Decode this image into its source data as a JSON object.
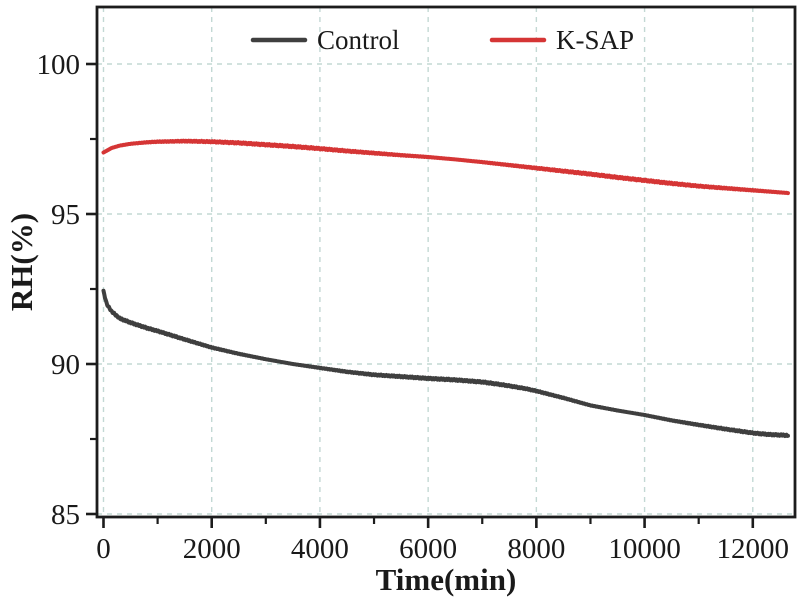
{
  "figure": {
    "background": "#ffffff"
  },
  "chart_data": {
    "type": "line",
    "title": "",
    "xlabel": "Time(min)",
    "ylabel": "RH(%)",
    "xlim": [
      -120,
      12780
    ],
    "ylim": [
      84.9,
      101.9
    ],
    "x_major_ticks": [
      0,
      2000,
      4000,
      6000,
      8000,
      10000,
      12000
    ],
    "x_tick_labels": [
      "0",
      "2000",
      "4000",
      "6000",
      "8000",
      "10000",
      "12000"
    ],
    "x_minor_ticks": [
      1000,
      3000,
      5000,
      7000,
      9000,
      11000
    ],
    "y_major_ticks": [
      85,
      90,
      95,
      100
    ],
    "y_tick_labels": [
      "85",
      "90",
      "95",
      "100"
    ],
    "y_minor_ticks": [
      87.5,
      92.5,
      97.5
    ],
    "grid": {
      "show": true,
      "style": "dashed",
      "color": "#c3d8d4",
      "at": "major-ticks"
    },
    "axis_color": "#1c1c1c",
    "legend": {
      "position": "top-center-inside",
      "entries": [
        "Control",
        "K-SAP"
      ]
    },
    "series": [
      {
        "name": "Control",
        "color": "#3f3f3f",
        "x": [
          0,
          60,
          150,
          300,
          500,
          800,
          1000,
          1500,
          2000,
          2500,
          3000,
          3500,
          4000,
          4500,
          5000,
          5500,
          6000,
          6500,
          7000,
          7400,
          7800,
          8000,
          8500,
          9000,
          9500,
          10000,
          10500,
          11000,
          11500,
          12000,
          12300,
          12650
        ],
        "y": [
          92.42,
          92.0,
          91.75,
          91.52,
          91.38,
          91.2,
          91.1,
          90.82,
          90.55,
          90.34,
          90.16,
          90.0,
          89.87,
          89.74,
          89.64,
          89.58,
          89.52,
          89.47,
          89.4,
          89.3,
          89.18,
          89.1,
          88.87,
          88.62,
          88.45,
          88.3,
          88.12,
          87.97,
          87.83,
          87.7,
          87.65,
          87.62
        ]
      },
      {
        "name": "K-SAP",
        "color": "#d53535",
        "x": [
          0,
          150,
          300,
          500,
          800,
          1000,
          1500,
          2000,
          2500,
          3000,
          3500,
          4000,
          4500,
          5000,
          5500,
          6000,
          6500,
          7000,
          7500,
          8000,
          8500,
          9000,
          9500,
          10000,
          10500,
          11000,
          11500,
          12000,
          12650
        ],
        "y": [
          97.05,
          97.2,
          97.28,
          97.34,
          97.39,
          97.41,
          97.43,
          97.41,
          97.37,
          97.31,
          97.25,
          97.18,
          97.1,
          97.03,
          96.96,
          96.9,
          96.82,
          96.73,
          96.63,
          96.53,
          96.43,
          96.33,
          96.22,
          96.12,
          96.02,
          95.93,
          95.86,
          95.79,
          95.7
        ]
      }
    ]
  }
}
